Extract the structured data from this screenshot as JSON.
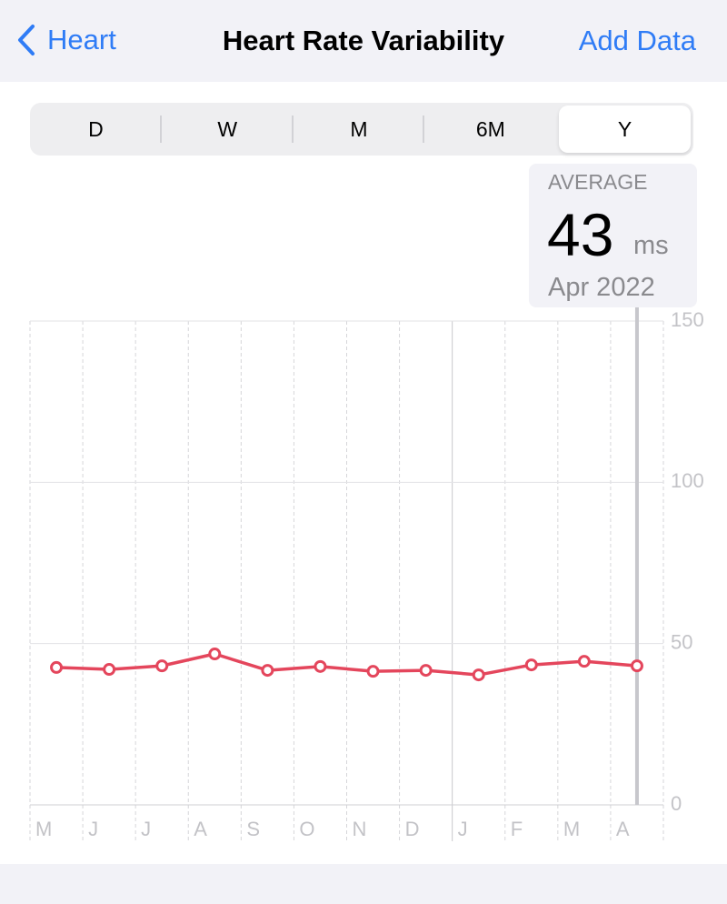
{
  "nav": {
    "back": "Heart",
    "title": "Heart Rate Variability",
    "action": "Add Data"
  },
  "segments": [
    "D",
    "W",
    "M",
    "6M",
    "Y"
  ],
  "selected_segment": 4,
  "average": {
    "label": "AVERAGE",
    "value": 43,
    "unit": "ms",
    "period": "Apr 2022"
  },
  "chart_data": {
    "type": "line",
    "categories": [
      "M",
      "J",
      "J",
      "A",
      "S",
      "O",
      "N",
      "D",
      "J",
      "F",
      "M",
      "A"
    ],
    "values": [
      42.6,
      42.0,
      43.1,
      46.8,
      41.7,
      42.9,
      41.4,
      41.7,
      40.3,
      43.4,
      44.5,
      43.1
    ],
    "color": "#e4465c",
    "ylim": [
      0,
      150
    ],
    "yticks": [
      0,
      50,
      100,
      150
    ],
    "grid": true
  }
}
